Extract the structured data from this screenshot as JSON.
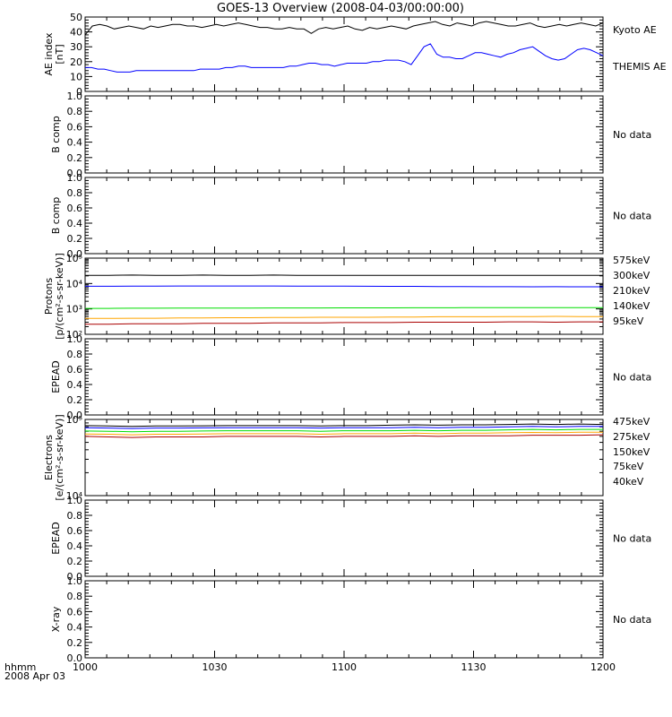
{
  "title": "GOES-13 Overview (2008-04-03/00:00:00)",
  "x_axis": {
    "ticks": [
      "1000",
      "1030",
      "1100",
      "1130",
      "1200"
    ],
    "corner_label_1": "hhmm",
    "corner_label_2": "2008 Apr 03"
  },
  "no_data_label": "No data",
  "colors": {
    "black": "#000000",
    "blue": "#0000ff",
    "green": "#00dd00",
    "orange": "#ffa500",
    "darkred": "#aa0000"
  },
  "chart_data": [
    {
      "type": "line",
      "ylabel": [
        "AE index",
        "[nT]"
      ],
      "ylim": [
        0,
        50
      ],
      "yticks": [
        "0",
        "10",
        "20",
        "30",
        "40",
        "50"
      ],
      "x_range": [
        "10:00",
        "12:00"
      ],
      "series": [
        {
          "name": "Kyoto AE",
          "color": "#000000",
          "values": [
            38,
            44,
            45,
            44,
            42,
            43,
            44,
            43,
            42,
            44,
            43,
            44,
            45,
            45,
            44,
            44,
            43,
            44,
            45,
            44,
            45,
            46,
            45,
            44,
            43,
            43,
            42,
            42,
            43,
            42,
            42,
            39,
            42,
            43,
            42,
            43,
            44,
            42,
            41,
            43,
            42,
            43,
            44,
            43,
            42,
            44,
            45,
            46,
            47,
            45,
            44,
            46,
            45,
            44,
            46,
            47,
            46,
            45,
            44,
            44,
            45,
            46,
            44,
            43,
            44,
            45,
            44,
            45,
            46,
            45,
            44,
            46
          ]
        },
        {
          "name": "THEMIS AE",
          "color": "#0000ff",
          "values": [
            16,
            16,
            15,
            15,
            14,
            13,
            13,
            13,
            14,
            14,
            14,
            14,
            14,
            14,
            14,
            14,
            14,
            14,
            15,
            15,
            15,
            15,
            16,
            16,
            17,
            17,
            16,
            16,
            16,
            16,
            16,
            16,
            17,
            17,
            18,
            19,
            19,
            18,
            18,
            17,
            18,
            19,
            19,
            19,
            19,
            20,
            20,
            21,
            21,
            21,
            20,
            18,
            24,
            30,
            32,
            25,
            23,
            23,
            22,
            22,
            24,
            26,
            26,
            25,
            24,
            23,
            25,
            26,
            28,
            29,
            30,
            27,
            24,
            22,
            21,
            22,
            25,
            28,
            29,
            28,
            26,
            24
          ]
        }
      ]
    },
    {
      "type": "line",
      "ylabel": [
        "B comp"
      ],
      "ylim": [
        0,
        1
      ],
      "yticks": [
        "0.0",
        "0.2",
        "0.4",
        "0.6",
        "0.8",
        "1.0"
      ],
      "series": [],
      "status": "No data"
    },
    {
      "type": "line",
      "ylabel": [
        "B comp"
      ],
      "ylim": [
        0,
        1
      ],
      "yticks": [
        "0.0",
        "0.2",
        "0.4",
        "0.6",
        "0.8",
        "1.0"
      ],
      "series": [],
      "status": "No data"
    },
    {
      "type": "line",
      "scale": "log",
      "ylabel": [
        "Protons",
        "[p/(cm²-s-sr-keV)]"
      ],
      "ylim": [
        100,
        100000
      ],
      "yticks": [
        "10²",
        "10³",
        "10⁴",
        "10⁵"
      ],
      "series": [
        {
          "name": "575keV",
          "color": "#aa0000",
          "values": [
            250,
            250,
            260,
            260,
            260,
            270,
            270,
            270,
            280,
            280,
            280,
            290,
            290,
            290,
            300,
            300,
            300,
            300,
            310,
            310,
            300,
            310,
            310
          ]
        },
        {
          "name": "300keV",
          "color": "#ffa500",
          "values": [
            420,
            420,
            430,
            430,
            440,
            440,
            450,
            450,
            460,
            460,
            470,
            470,
            470,
            480,
            480,
            490,
            490,
            490,
            500,
            500,
            510,
            500,
            500
          ]
        },
        {
          "name": "210keV",
          "color": "#00dd00",
          "values": [
            1050,
            1050,
            1060,
            1060,
            1070,
            1070,
            1080,
            1080,
            1090,
            1090,
            1090,
            1100,
            1100,
            1100,
            1110,
            1110,
            1120,
            1120,
            1130,
            1120,
            1130,
            1120,
            1130
          ]
        },
        {
          "name": "140keV",
          "color": "#0000ff",
          "values": [
            7800,
            7800,
            7900,
            7900,
            8000,
            8000,
            8000,
            8000,
            8000,
            7900,
            7900,
            7900,
            7800,
            7700,
            7700,
            7600,
            7600,
            7500,
            7500,
            7400,
            7500,
            7400,
            7400
          ]
        },
        {
          "name": "95keV",
          "color": "#000000",
          "values": [
            21000,
            21000,
            21500,
            21000,
            21000,
            21500,
            21000,
            21000,
            21500,
            21000,
            21000,
            21000,
            21000,
            21000,
            21000,
            21000,
            21000,
            21000,
            21000,
            21000,
            21000,
            21000,
            21000
          ]
        }
      ]
    },
    {
      "type": "line",
      "ylabel": [
        "EPEAD"
      ],
      "ylim": [
        0,
        1
      ],
      "yticks": [
        "0.0",
        "0.2",
        "0.4",
        "0.6",
        "0.8",
        "1.0"
      ],
      "series": [],
      "status": "No data"
    },
    {
      "type": "line",
      "scale": "log",
      "ylabel": [
        "Electrons",
        "[e/(cm²-s-sr-keV)]"
      ],
      "ylim": [
        10000,
        100000
      ],
      "yticks": [
        "10⁴",
        "10⁵"
      ],
      "series": [
        {
          "name": "475keV",
          "color": "#aa0000",
          "values": [
            60000,
            59000,
            58000,
            59000,
            59000,
            59000,
            60000,
            60000,
            60000,
            60000,
            59000,
            60000,
            60000,
            60000,
            61000,
            60000,
            61000,
            61000,
            61000,
            62000,
            62000,
            62000,
            63000
          ]
        },
        {
          "name": "275keV",
          "color": "#ffa500",
          "values": [
            64500,
            64000,
            63000,
            64000,
            64000,
            64500,
            65000,
            65000,
            65000,
            65000,
            64000,
            65000,
            65000,
            65000,
            66000,
            65000,
            66000,
            66000,
            67000,
            67500,
            67000,
            68000,
            68000
          ]
        },
        {
          "name": "150keV",
          "color": "#00dd00",
          "values": [
            70500,
            70000,
            69000,
            70000,
            70000,
            70500,
            71000,
            71000,
            71000,
            71000,
            70000,
            71000,
            71000,
            71000,
            72000,
            71000,
            72000,
            72000,
            73000,
            74000,
            73000,
            74000,
            74000
          ]
        },
        {
          "name": "75keV",
          "color": "#0000ff",
          "values": [
            78000,
            77000,
            76000,
            77000,
            77000,
            77500,
            78000,
            78000,
            78000,
            78000,
            77000,
            78000,
            78000,
            78000,
            79000,
            78000,
            79000,
            79000,
            80000,
            81000,
            80000,
            81000,
            81000
          ]
        },
        {
          "name": "40keV",
          "color": "#000000",
          "values": [
            83000,
            82000,
            81000,
            82000,
            82000,
            82500,
            83000,
            83000,
            83000,
            83000,
            82000,
            83000,
            83000,
            84000,
            85000,
            84000,
            85000,
            85000,
            86000,
            87000,
            86000,
            87000,
            86000
          ]
        }
      ]
    },
    {
      "type": "line",
      "ylabel": [
        "EPEAD"
      ],
      "ylim": [
        0,
        1
      ],
      "yticks": [
        "0.0",
        "0.2",
        "0.4",
        "0.6",
        "0.8",
        "1.0"
      ],
      "series": [],
      "status": "No data"
    },
    {
      "type": "line",
      "ylabel": [
        "X-ray"
      ],
      "ylim": [
        0,
        1
      ],
      "yticks": [
        "0.0",
        "0.2",
        "0.4",
        "0.6",
        "0.8",
        "1.0"
      ],
      "series": [],
      "status": "No data"
    }
  ]
}
